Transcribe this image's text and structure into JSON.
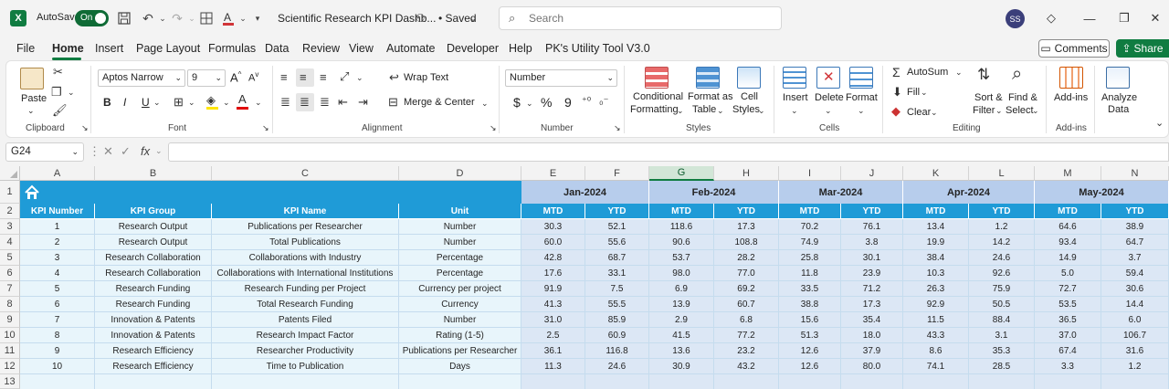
{
  "titlebar": {
    "autosave_label": "AutoSave",
    "autosave_state": "On",
    "doc_title": "Scientific Research KPI Dashb...",
    "saved_status": "• Saved",
    "search_placeholder": "Search",
    "avatar_initials": "SS"
  },
  "menu": {
    "tabs": [
      "File",
      "Home",
      "Insert",
      "Page Layout",
      "Formulas",
      "Data",
      "Review",
      "View",
      "Automate",
      "Developer",
      "Help",
      "PK's Utility Tool V3.0"
    ],
    "active": "Home",
    "comments_label": "Comments",
    "share_label": "Share"
  },
  "ribbon": {
    "clipboard": {
      "paste": "Paste",
      "group": "Clipboard"
    },
    "font": {
      "family": "Aptos Narrow",
      "size": "9",
      "bold": "B",
      "italic": "I",
      "underline": "U",
      "group": "Font"
    },
    "alignment": {
      "wrap_text": "Wrap Text",
      "merge_center": "Merge & Center",
      "group": "Alignment"
    },
    "number": {
      "format": "Number",
      "currency": "$",
      "percent": "%",
      "comma": "9",
      "group": "Number"
    },
    "styles": {
      "conditional_formatting": [
        "Conditional",
        "Formatting"
      ],
      "format_as_table": [
        "Format as",
        "Table"
      ],
      "cell_styles": [
        "Cell",
        "Styles"
      ],
      "group": "Styles"
    },
    "cells": {
      "insert": "Insert",
      "delete": "Delete",
      "format": "Format",
      "group": "Cells"
    },
    "editing": {
      "autosum": "AutoSum",
      "fill": "Fill",
      "clear": "Clear",
      "sort_filter": [
        "Sort &",
        "Filter"
      ],
      "find_select": [
        "Find &",
        "Select"
      ],
      "group": "Editing"
    },
    "addins": {
      "addins": "Add-ins",
      "group": "Add-ins"
    },
    "analyze": {
      "analyze_data": [
        "Analyze",
        "Data"
      ]
    }
  },
  "formula_bar": {
    "name_box": "G24",
    "fx": "fx"
  },
  "colors": {
    "header_blue": "#1f9bd7",
    "month_blue": "#b7cdec",
    "label_light": "#e8f5fb",
    "data_light": "#dce7f5",
    "excel_green": "#107c41"
  },
  "sheet": {
    "columns": [
      "A",
      "B",
      "C",
      "D",
      "E",
      "F",
      "G",
      "H",
      "I",
      "J",
      "K",
      "L",
      "M",
      "N"
    ],
    "selected_column": "G",
    "row_numbers": [
      "1",
      "2",
      "3",
      "4",
      "5",
      "6",
      "7",
      "8",
      "9",
      "10",
      "11",
      "12",
      "13"
    ],
    "home_icon": "home-icon",
    "months": [
      "Jan-2024",
      "Feb-2024",
      "Mar-2024",
      "Apr-2024",
      "May-2024"
    ],
    "headers": [
      "KPI Number",
      "KPI Group",
      "KPI Name",
      "Unit",
      "MTD",
      "YTD",
      "MTD",
      "YTD",
      "MTD",
      "YTD",
      "MTD",
      "YTD",
      "MTD",
      "YTD"
    ],
    "rows": [
      [
        "1",
        "Research Output",
        "Publications per Researcher",
        "Number",
        "30.3",
        "52.1",
        "118.6",
        "17.3",
        "70.2",
        "76.1",
        "13.4",
        "1.2",
        "64.6",
        "38.9"
      ],
      [
        "2",
        "Research Output",
        "Total Publications",
        "Number",
        "60.0",
        "55.6",
        "90.6",
        "108.8",
        "74.9",
        "3.8",
        "19.9",
        "14.2",
        "93.4",
        "64.7"
      ],
      [
        "3",
        "Research Collaboration",
        "Collaborations with Industry",
        "Percentage",
        "42.8",
        "68.7",
        "53.7",
        "28.2",
        "25.8",
        "30.1",
        "38.4",
        "24.6",
        "14.9",
        "3.7"
      ],
      [
        "4",
        "Research Collaboration",
        "Collaborations with International Institutions",
        "Percentage",
        "17.6",
        "33.1",
        "98.0",
        "77.0",
        "11.8",
        "23.9",
        "10.3",
        "92.6",
        "5.0",
        "59.4"
      ],
      [
        "5",
        "Research Funding",
        "Research Funding per Project",
        "Currency per project",
        "91.9",
        "7.5",
        "6.9",
        "69.2",
        "33.5",
        "71.2",
        "26.3",
        "75.9",
        "72.7",
        "30.6"
      ],
      [
        "6",
        "Research Funding",
        "Total Research Funding",
        "Currency",
        "41.3",
        "55.5",
        "13.9",
        "60.7",
        "38.8",
        "17.3",
        "92.9",
        "50.5",
        "53.5",
        "14.4"
      ],
      [
        "7",
        "Innovation & Patents",
        "Patents Filed",
        "Number",
        "31.0",
        "85.9",
        "2.9",
        "6.8",
        "15.6",
        "35.4",
        "11.5",
        "88.4",
        "36.5",
        "6.0"
      ],
      [
        "8",
        "Innovation & Patents",
        "Research Impact Factor",
        "Rating (1-5)",
        "2.5",
        "60.9",
        "41.5",
        "77.2",
        "51.3",
        "18.0",
        "43.3",
        "3.1",
        "37.0",
        "106.7"
      ],
      [
        "9",
        "Research Efficiency",
        "Researcher Productivity",
        "Publications per Researcher",
        "36.1",
        "116.8",
        "13.6",
        "23.2",
        "12.6",
        "37.9",
        "8.6",
        "35.3",
        "67.4",
        "31.6"
      ],
      [
        "10",
        "Research Efficiency",
        "Time to Publication",
        "Days",
        "11.3",
        "24.6",
        "30.9",
        "43.2",
        "12.6",
        "80.0",
        "74.1",
        "28.5",
        "3.3",
        "1.2"
      ]
    ]
  }
}
